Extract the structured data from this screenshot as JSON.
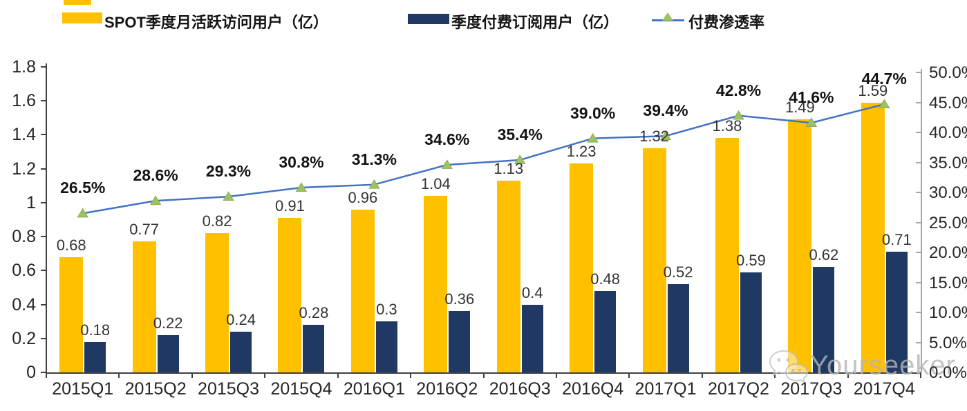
{
  "legend": {
    "items": [
      {
        "label": "SPOT季度月活跃访问用户（亿）",
        "color": "#FFC000",
        "type": "bar"
      },
      {
        "label": "季度付费订阅用户（亿）",
        "color": "#1F3864",
        "type": "bar"
      },
      {
        "label": "付费渗透率",
        "color": "#4472C4",
        "marker_color": "#9DC360",
        "type": "line"
      }
    ]
  },
  "chart_data": {
    "type": "bar",
    "subtype": "grouped bars with secondary-axis line",
    "categories": [
      "2015Q1",
      "2015Q2",
      "2015Q3",
      "2015Q4",
      "2016Q1",
      "2016Q2",
      "2016Q3",
      "2016Q4",
      "2017Q1",
      "2017Q2",
      "2017Q3",
      "2017Q4"
    ],
    "series": [
      {
        "name": "SPOT季度月活跃访问用户（亿）",
        "type": "bar",
        "axis": "left",
        "color": "#FFC000",
        "values": [
          0.68,
          0.77,
          0.82,
          0.91,
          0.96,
          1.04,
          1.13,
          1.23,
          1.32,
          1.38,
          1.49,
          1.59
        ],
        "labels": [
          "0.68",
          "0.77",
          "0.82",
          "0.91",
          "0.96",
          "1.04",
          "1.13",
          "1.23",
          "1.32",
          "1.38",
          "1.49",
          "1.59"
        ]
      },
      {
        "name": "季度付费订阅用户（亿）",
        "type": "bar",
        "axis": "left",
        "color": "#1F3864",
        "values": [
          0.18,
          0.22,
          0.24,
          0.28,
          0.3,
          0.36,
          0.4,
          0.48,
          0.52,
          0.59,
          0.62,
          0.71
        ],
        "labels": [
          "0.18",
          "0.22",
          "0.24",
          "0.28",
          "0.3",
          "0.36",
          "0.4",
          "0.48",
          "0.52",
          "0.59",
          "0.62",
          "0.71"
        ]
      },
      {
        "name": "付费渗透率",
        "type": "line",
        "axis": "right",
        "color": "#4472C4",
        "marker": "triangle",
        "marker_color": "#9DC360",
        "values": [
          26.5,
          28.6,
          29.3,
          30.8,
          31.3,
          34.6,
          35.4,
          39.0,
          39.4,
          42.8,
          41.6,
          44.7
        ],
        "labels": [
          "26.5%",
          "28.6%",
          "29.3%",
          "30.8%",
          "31.3%",
          "34.6%",
          "35.4%",
          "39.0%",
          "39.4%",
          "42.8%",
          "41.6%",
          "44.7%"
        ]
      }
    ],
    "left_axis": {
      "min": 0,
      "max": 1.8,
      "step": 0.2,
      "tick_values": [
        0,
        0.2,
        0.4,
        0.6,
        0.8,
        1,
        1.2,
        1.4,
        1.6,
        1.8
      ],
      "tick_labels": [
        "0",
        "0.2",
        "0.4",
        "0.6",
        "0.8",
        "1",
        "1.2",
        "1.4",
        "1.6",
        "1.8"
      ]
    },
    "right_axis": {
      "min": 0,
      "max": 50,
      "step": 5,
      "tick_values": [
        0,
        5,
        10,
        15,
        20,
        25,
        30,
        35,
        40,
        45,
        50
      ],
      "tick_labels": [
        "0.0%",
        "5.0%",
        "10.0%",
        "15.0%",
        "20.0%",
        "25.0%",
        "30.0%",
        "35.0%",
        "40.0%",
        "45.0%",
        "50.0%"
      ]
    },
    "grid": false,
    "legend_position": "top"
  },
  "watermark": {
    "text": "Yourseeker",
    "icon": "wechat-icon"
  }
}
